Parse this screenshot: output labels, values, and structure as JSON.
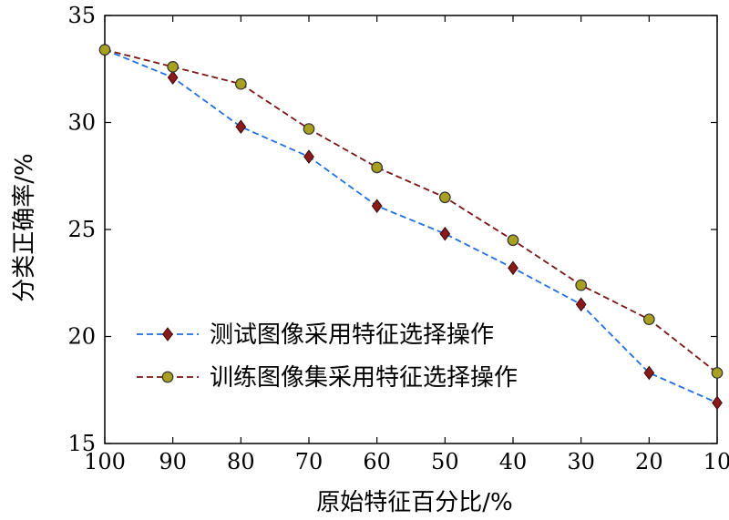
{
  "chart_data": {
    "type": "line",
    "title": "",
    "xlabel": "原始特征百分比/%",
    "ylabel": "分类正确率/%",
    "categories": [
      "100",
      "90",
      "80",
      "70",
      "60",
      "50",
      "40",
      "30",
      "20",
      "10"
    ],
    "x": [
      100,
      90,
      80,
      70,
      60,
      50,
      40,
      30,
      20,
      10
    ],
    "xlim": [
      100,
      10
    ],
    "ylim": [
      15,
      35
    ],
    "yticks": [
      "15",
      "20",
      "25",
      "30",
      "35"
    ],
    "grid": false,
    "legend_position": "lower-left",
    "series": [
      {
        "name": "测试图像采用特征选择操作",
        "color": "#1f6fe0",
        "marker": "diamond",
        "marker_color": "#8b1a1a",
        "line_style": "dashed",
        "values": [
          33.4,
          32.1,
          29.8,
          28.4,
          26.1,
          24.8,
          23.2,
          21.5,
          18.3,
          16.9
        ]
      },
      {
        "name": "训练图像集采用特征选择操作",
        "color": "#7a1414",
        "marker": "circle",
        "marker_color": "#a8a020",
        "line_style": "dashed",
        "values": [
          33.4,
          32.6,
          31.8,
          29.7,
          27.9,
          26.5,
          24.5,
          22.4,
          20.8,
          18.3
        ]
      }
    ]
  }
}
